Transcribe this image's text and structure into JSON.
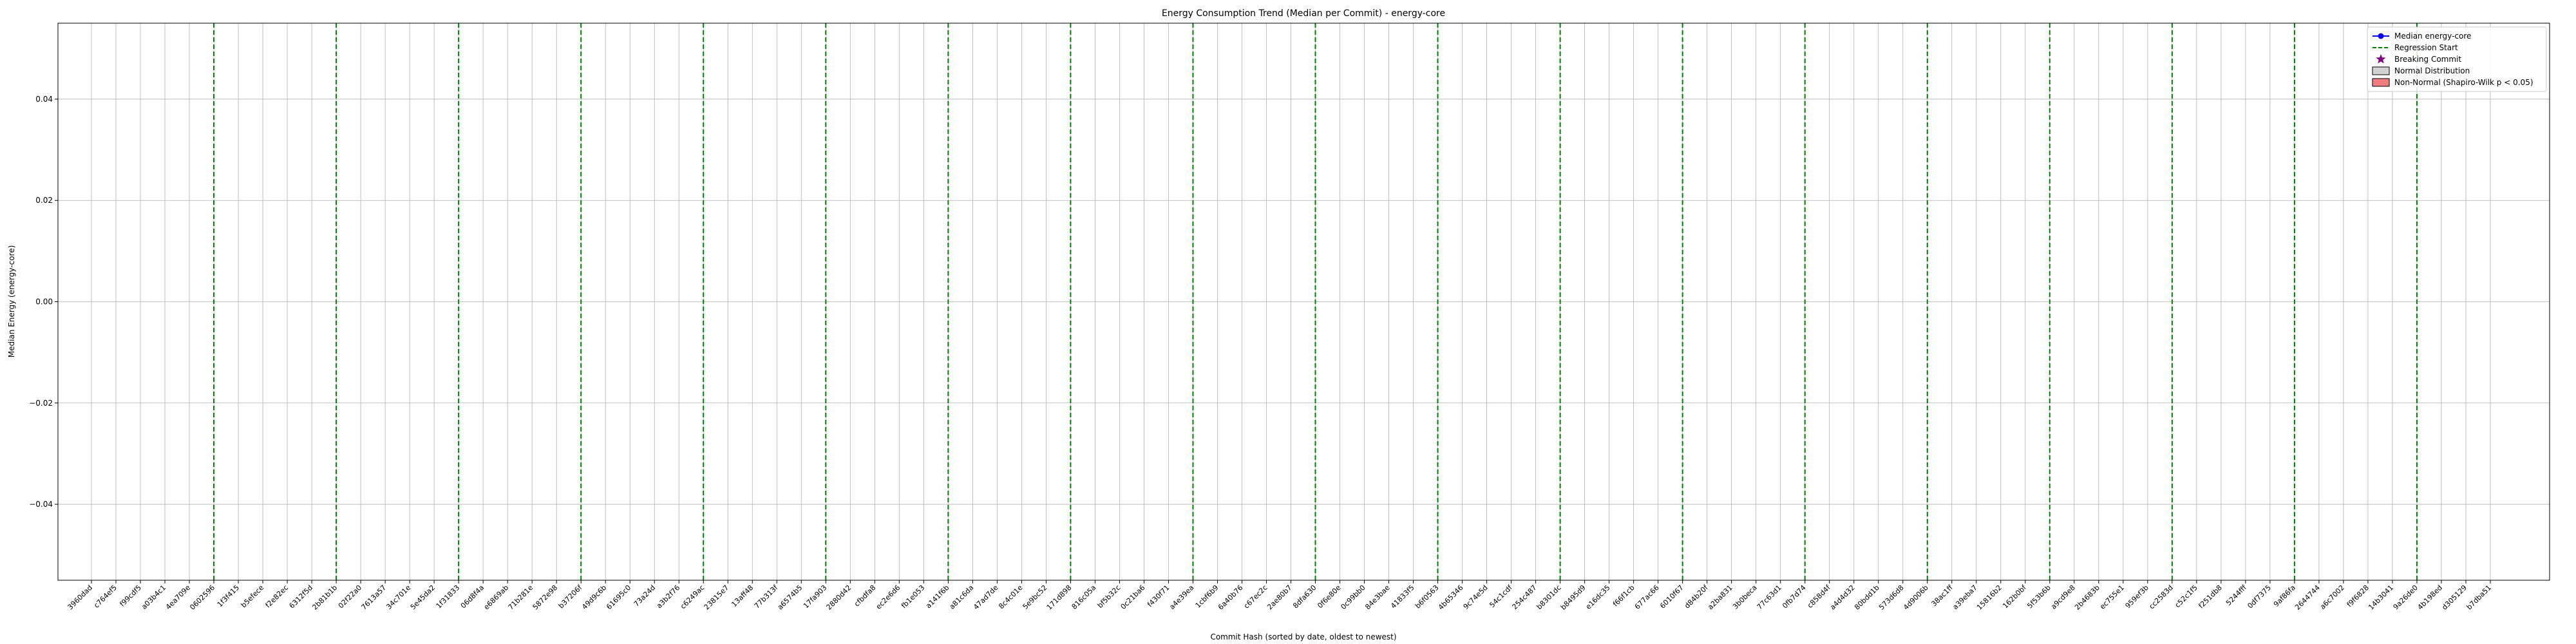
{
  "chart_data": {
    "type": "line",
    "title": "Energy Consumption Trend (Median per Commit) - energy-core",
    "xlabel": "Commit Hash (sorted by date, oldest to newest)",
    "ylabel": "Median Energy (energy-core)",
    "ylim": [
      -0.055,
      0.055
    ],
    "yticks": [
      "0.04",
      "0.02",
      "0.00",
      "−0.02",
      "−0.04"
    ],
    "ytick_values": [
      0.04,
      0.02,
      0.0,
      -0.02,
      -0.04
    ],
    "grid": true,
    "legend_position": "top-right",
    "legend": [
      {
        "label": "Median energy-core",
        "kind": "line-marker",
        "color": "#0000ff"
      },
      {
        "label": "Regression Start",
        "kind": "dashed",
        "color": "#008000"
      },
      {
        "label": "Breaking Commit",
        "kind": "star",
        "color": "#800080"
      },
      {
        "label": "Normal Distribution",
        "kind": "box",
        "color": "#d3d3d3"
      },
      {
        "label": "Non-Normal (Shapiro-Wilk p < 0.05)",
        "kind": "box",
        "color": "#f08080"
      }
    ],
    "categories": [
      "3960dad",
      "c764ef5",
      "f99cdf5",
      "a03b4c1",
      "4ea709e",
      "0602596",
      "1f3f415",
      "b5efece",
      "f2e82ec",
      "6312f5d",
      "2b81b1b",
      "02f22a0",
      "7613a57",
      "34c701e",
      "5e45da2",
      "1f31833",
      "06d8f4a",
      "e6869ab",
      "71b281e",
      "5872e98",
      "b37206f",
      "49d9c6b",
      "61695c0",
      "73a24d",
      "a3b2f76",
      "c6249ac",
      "23815e7",
      "13aff48",
      "77b313f",
      "a6574b5",
      "17fa903",
      "2880d42",
      "cfbdfa8",
      "ec2e6d6",
      "fb1e053",
      "a141f6b",
      "a81c6da",
      "47ad7de",
      "8c4c01e",
      "5e9bc52",
      "171d898",
      "816c05a",
      "bf5b32c",
      "0c21ba6",
      "f430f71",
      "a4e39ea",
      "1cbf6b9",
      "6a40b76",
      "c67ec2c",
      "2ae80b7",
      "8dfa630",
      "0f6e80e",
      "0c99bb0",
      "84e3bae",
      "41833f5",
      "b6f0563",
      "4b65346",
      "9c74e5d",
      "54c1cdf",
      "254c487",
      "b8301dc",
      "b8495d9",
      "e16dc35",
      "f66f1cb",
      "677ac66",
      "6010f67",
      "d84b20f",
      "a2ba831",
      "3b0beca",
      "77c63d1",
      "0fb7d74",
      "c858d4f",
      "a4d4d32",
      "80bdd1b",
      "573d6d8",
      "4d9006b",
      "38ac1ff",
      "a39eba7",
      "15816b2",
      "162b0bf",
      "5f53b6b",
      "a9cd9e8",
      "2b4683b",
      "ec755e1",
      "959ef3b",
      "cc2583d",
      "c52c1f5",
      "f251db8",
      "5244fff",
      "0df7375",
      "9af86fa",
      "2644744",
      "a6c7002",
      "f9f6828",
      "14b3041",
      "9a26de0",
      "4b198ed",
      "d305129",
      "b7dba51"
    ],
    "regression_start_indices": [
      5,
      10,
      15,
      20,
      25,
      30,
      35,
      40,
      45,
      50,
      55,
      60,
      65,
      70,
      75,
      80,
      85,
      90,
      95
    ]
  }
}
